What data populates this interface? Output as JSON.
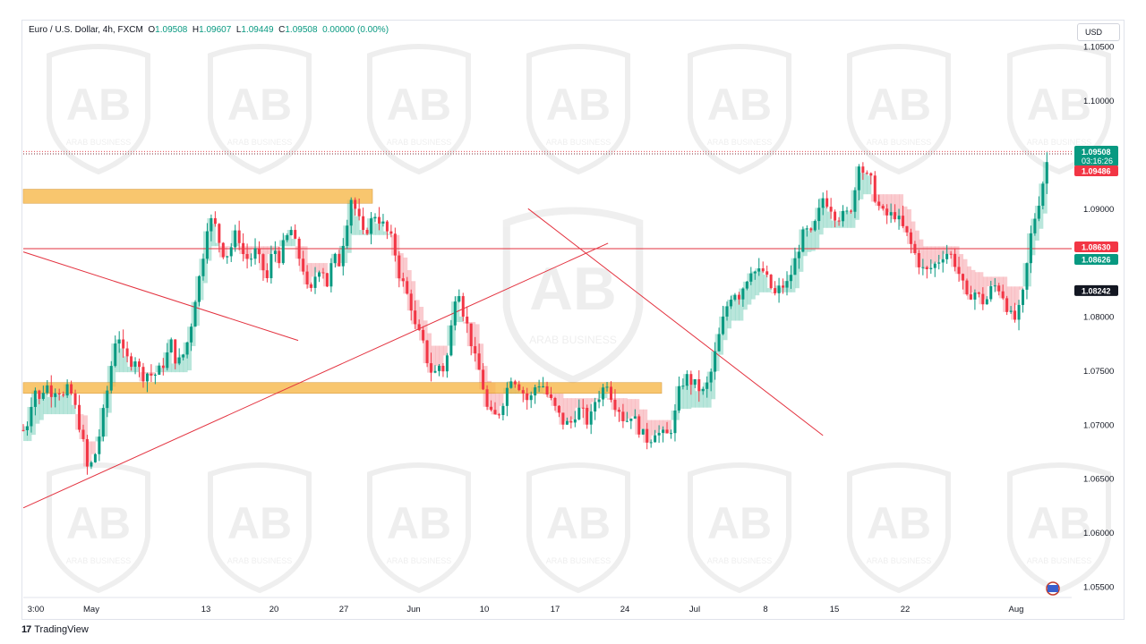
{
  "header": {
    "symbol": "Euro / U.S. Dollar, 4h, FXCM",
    "open_label": "O",
    "open": "1.09508",
    "high_label": "H",
    "high": "1.09607",
    "low_label": "L",
    "low": "1.09449",
    "close_label": "C",
    "close": "1.09508",
    "change": "0.00000 (0.00%)"
  },
  "currency_button": "USD",
  "footer": {
    "logo": "17",
    "brand": "TradingView"
  },
  "watermark": {
    "text": "ARAB BUSINESS",
    "monogram": "AB"
  },
  "colors": {
    "up": "#089981",
    "down": "#f23645",
    "zone": "#f7b84b",
    "trendline": "#e3323f",
    "cloud_up": "#7fd2bd",
    "cloud_down": "#f5a0a8",
    "last_price": "#089981",
    "black": "#131722"
  },
  "chart_data": {
    "type": "candlestick",
    "title": "Euro / U.S. Dollar, 4h, FXCM",
    "ylim": [
      1.054,
      1.1075
    ],
    "y_ticks": [
      "1.10500",
      "1.10000",
      "1.09000",
      "1.08000",
      "1.07500",
      "1.07000",
      "1.06500",
      "1.06000",
      "1.05500"
    ],
    "x_ticks": [
      "3:00",
      "May",
      "13",
      "20",
      "27",
      "Jun",
      "10",
      "17",
      "24",
      "Jul",
      "8",
      "15",
      "22",
      "Aug"
    ],
    "price_path": [
      [
        0,
        1.0695
      ],
      [
        6,
        1.0705
      ],
      [
        10,
        1.0738
      ],
      [
        16,
        1.0722
      ],
      [
        22,
        1.0738
      ],
      [
        28,
        1.0731
      ],
      [
        34,
        1.0735
      ],
      [
        40,
        1.0725
      ],
      [
        46,
        1.0735
      ],
      [
        52,
        1.0715
      ],
      [
        58,
        1.0693
      ],
      [
        64,
        1.066
      ],
      [
        70,
        1.0665
      ],
      [
        76,
        1.069
      ],
      [
        82,
        1.072
      ],
      [
        88,
        1.0755
      ],
      [
        94,
        1.079
      ],
      [
        100,
        1.0765
      ],
      [
        106,
        1.0758
      ],
      [
        112,
        1.0762
      ],
      [
        118,
        1.0745
      ],
      [
        124,
        1.0748
      ],
      [
        130,
        1.0745
      ],
      [
        136,
        1.075
      ],
      [
        142,
        1.076
      ],
      [
        148,
        1.0775
      ],
      [
        154,
        1.0755
      ],
      [
        160,
        1.0765
      ],
      [
        166,
        1.0782
      ],
      [
        172,
        1.0818
      ],
      [
        178,
        1.0845
      ],
      [
        184,
        1.0885
      ],
      [
        190,
        1.089
      ],
      [
        196,
        1.087
      ],
      [
        202,
        1.0855
      ],
      [
        208,
        1.0865
      ],
      [
        214,
        1.088
      ],
      [
        220,
        1.0858
      ],
      [
        226,
        1.0852
      ],
      [
        232,
        1.086
      ],
      [
        238,
        1.0848
      ],
      [
        244,
        1.0835
      ],
      [
        250,
        1.0865
      ],
      [
        256,
        1.0855
      ],
      [
        262,
        1.087
      ],
      [
        268,
        1.088
      ],
      [
        274,
        1.086
      ],
      [
        280,
        1.0845
      ],
      [
        286,
        1.0815
      ],
      [
        292,
        1.0838
      ],
      [
        298,
        1.085
      ],
      [
        304,
        1.083
      ],
      [
        310,
        1.0855
      ],
      [
        316,
        1.085
      ],
      [
        322,
        1.088
      ],
      [
        328,
        1.091
      ],
      [
        334,
        1.0895
      ],
      [
        340,
        1.0875
      ],
      [
        346,
        1.0885
      ],
      [
        352,
        1.0895
      ],
      [
        358,
        1.0888
      ],
      [
        364,
        1.0878
      ],
      [
        370,
        1.0868
      ],
      [
        376,
        1.084
      ],
      [
        382,
        1.0825
      ],
      [
        388,
        1.081
      ],
      [
        392,
        1.079
      ],
      [
        398,
        1.078
      ],
      [
        404,
        1.076
      ],
      [
        410,
        1.0745
      ],
      [
        416,
        1.0755
      ],
      [
        422,
        1.075
      ],
      [
        428,
        1.079
      ],
      [
        434,
        1.0835
      ],
      [
        440,
        1.0805
      ],
      [
        446,
        1.0785
      ],
      [
        452,
        1.076
      ],
      [
        458,
        1.0745
      ],
      [
        464,
        1.0715
      ],
      [
        470,
        1.0705
      ],
      [
        476,
        1.0712
      ],
      [
        482,
        1.0728
      ],
      [
        488,
        1.0745
      ],
      [
        494,
        1.074
      ],
      [
        500,
        1.073
      ],
      [
        506,
        1.072
      ],
      [
        512,
        1.0735
      ],
      [
        518,
        1.074
      ],
      [
        524,
        1.0728
      ],
      [
        530,
        1.0718
      ],
      [
        536,
        1.0708
      ],
      [
        542,
        1.07
      ],
      [
        548,
        1.0702
      ],
      [
        554,
        1.0715
      ],
      [
        560,
        1.071
      ],
      [
        566,
        1.07
      ],
      [
        572,
        1.0722
      ],
      [
        578,
        1.073
      ],
      [
        584,
        1.074
      ],
      [
        590,
        1.0722
      ],
      [
        596,
        1.0715
      ],
      [
        602,
        1.0702
      ],
      [
        608,
        1.071
      ],
      [
        614,
        1.07
      ],
      [
        620,
        1.069
      ],
      [
        626,
        1.0685
      ],
      [
        632,
        1.0695
      ],
      [
        638,
        1.069
      ],
      [
        644,
        1.069
      ],
      [
        650,
        1.07
      ],
      [
        656,
        1.073
      ],
      [
        662,
        1.0745
      ],
      [
        668,
        1.074
      ],
      [
        674,
        1.0735
      ],
      [
        680,
        1.073
      ],
      [
        686,
        1.074
      ],
      [
        692,
        1.0765
      ],
      [
        698,
        1.079
      ],
      [
        704,
        1.081
      ],
      [
        710,
        1.0825
      ],
      [
        716,
        1.082
      ],
      [
        722,
        1.0832
      ],
      [
        728,
        1.0845
      ],
      [
        734,
        1.084
      ],
      [
        740,
        1.0842
      ],
      [
        746,
        1.083
      ],
      [
        752,
        1.082
      ],
      [
        758,
        1.0828
      ],
      [
        764,
        1.083
      ],
      [
        770,
        1.0845
      ],
      [
        776,
        1.0865
      ],
      [
        782,
        1.088
      ],
      [
        788,
        1.0875
      ],
      [
        794,
        1.089
      ],
      [
        800,
        1.091
      ],
      [
        806,
        1.0905
      ],
      [
        812,
        1.0895
      ],
      [
        818,
        1.0892
      ],
      [
        824,
        1.0895
      ],
      [
        830,
        1.0905
      ],
      [
        836,
        1.0945
      ],
      [
        842,
        1.093
      ],
      [
        848,
        1.0925
      ],
      [
        854,
        1.0905
      ],
      [
        860,
        1.0895
      ],
      [
        866,
        1.0893
      ],
      [
        872,
        1.0895
      ],
      [
        878,
        1.0885
      ],
      [
        884,
        1.0875
      ],
      [
        890,
        1.0862
      ],
      [
        896,
        1.085
      ],
      [
        902,
        1.084
      ],
      [
        908,
        1.0845
      ],
      [
        914,
        1.085
      ],
      [
        920,
        1.0858
      ],
      [
        926,
        1.086
      ],
      [
        932,
        1.085
      ],
      [
        938,
        1.0835
      ],
      [
        944,
        1.0815
      ],
      [
        950,
        1.0825
      ],
      [
        956,
        1.0818
      ],
      [
        962,
        1.0812
      ],
      [
        968,
        1.0825
      ],
      [
        974,
        1.083
      ],
      [
        980,
        1.082
      ],
      [
        986,
        1.0805
      ],
      [
        990,
        1.0795
      ],
      [
        994,
        1.08
      ],
      [
        998,
        1.081
      ],
      [
        1002,
        1.083
      ],
      [
        1006,
        1.0865
      ],
      [
        1010,
        1.0885
      ],
      [
        1014,
        1.09
      ],
      [
        1018,
        1.0915
      ],
      [
        1022,
        1.0935
      ],
      [
        1026,
        1.0951
      ]
    ],
    "annotations": {
      "current_price": {
        "value": 1.09508,
        "label": "1.09508",
        "countdown": "03:16:26"
      },
      "line_labels": [
        {
          "value": 1.09486,
          "label": "1.09486",
          "color": "#f23645"
        },
        {
          "value": 1.0863,
          "label": "1.08630",
          "color": "#f23645"
        },
        {
          "value": 1.08626,
          "label": "1.08626",
          "color": "#089981"
        },
        {
          "value": 1.08242,
          "label": "1.08242",
          "color": "#131722"
        }
      ],
      "horizontal_lines": [
        1.0863,
        1.09508
      ],
      "zones": [
        {
          "from": 1.0905,
          "to": 1.0918,
          "x_end": 390
        },
        {
          "from": 1.0729,
          "to": 1.0739,
          "x_end": 713
        }
      ],
      "trendlines": [
        [
          [
            0,
            1.086
          ],
          [
            275,
            1.0778
          ]
        ],
        [
          [
            0,
            1.0623
          ],
          [
            585,
            1.0868
          ]
        ],
        [
          [
            505,
            1.09
          ],
          [
            800,
            1.069
          ]
        ]
      ]
    }
  }
}
